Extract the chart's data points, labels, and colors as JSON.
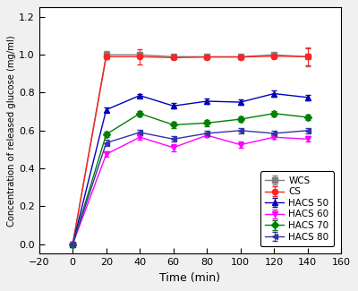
{
  "time": [
    0,
    20,
    40,
    60,
    80,
    100,
    120,
    140
  ],
  "WCS": {
    "y": [
      0.0,
      1.0,
      1.0,
      0.99,
      0.99,
      0.99,
      1.0,
      0.99
    ],
    "yerr": [
      0.0,
      0.02,
      0.01,
      0.01,
      0.01,
      0.01,
      0.01,
      0.05
    ],
    "color": "#808080",
    "marker": "s",
    "label": "WCS",
    "zorder": 3
  },
  "CS": {
    "y": [
      0.0,
      0.99,
      0.99,
      0.985,
      0.988,
      0.988,
      0.993,
      0.99
    ],
    "yerr": [
      0.0,
      0.015,
      0.04,
      0.01,
      0.01,
      0.01,
      0.01,
      0.045
    ],
    "color": "#FF2222",
    "marker": "o",
    "label": "CS",
    "zorder": 3
  },
  "HACS50": {
    "y": [
      0.0,
      0.71,
      0.785,
      0.73,
      0.755,
      0.75,
      0.795,
      0.775
    ],
    "yerr": [
      0.0,
      0.01,
      0.01,
      0.015,
      0.015,
      0.015,
      0.015,
      0.015
    ],
    "color": "#0000BB",
    "marker": "^",
    "label": "HACS 50",
    "zorder": 3
  },
  "HACS60": {
    "y": [
      0.0,
      0.475,
      0.565,
      0.51,
      0.575,
      0.525,
      0.565,
      0.555
    ],
    "yerr": [
      0.0,
      0.015,
      0.015,
      0.02,
      0.01,
      0.015,
      0.01,
      0.015
    ],
    "color": "#FF00FF",
    "marker": "v",
    "label": "HACS 60",
    "zorder": 3
  },
  "HACS70": {
    "y": [
      0.0,
      0.58,
      0.69,
      0.63,
      0.64,
      0.66,
      0.69,
      0.67
    ],
    "yerr": [
      0.0,
      0.015,
      0.015,
      0.015,
      0.015,
      0.015,
      0.015,
      0.015
    ],
    "color": "#008000",
    "marker": "D",
    "label": "HACS 70",
    "zorder": 3
  },
  "HACS80": {
    "y": [
      0.0,
      0.535,
      0.59,
      0.555,
      0.585,
      0.6,
      0.585,
      0.6
    ],
    "yerr": [
      0.0,
      0.015,
      0.015,
      0.015,
      0.015,
      0.015,
      0.015,
      0.015
    ],
    "color": "#3333AA",
    "marker": "<",
    "label": "HACS 80",
    "zorder": 3
  },
  "xlabel": "Time (min)",
  "ylabel": "Concentration of released glucose (mg/ml)",
  "xlim": [
    -20,
    160
  ],
  "ylim": [
    -0.05,
    1.25
  ],
  "xticks": [
    -20,
    0,
    20,
    40,
    60,
    80,
    100,
    120,
    140,
    160
  ],
  "yticks": [
    0.0,
    0.2,
    0.4,
    0.6,
    0.8,
    1.0,
    1.2
  ],
  "legend_loc": "lower right",
  "linewidth": 1.0,
  "markersize": 4.5,
  "capsize": 2.5,
  "elinewidth": 0.8,
  "fig_bg": "#f0f0f0",
  "ax_bg": "#ffffff"
}
